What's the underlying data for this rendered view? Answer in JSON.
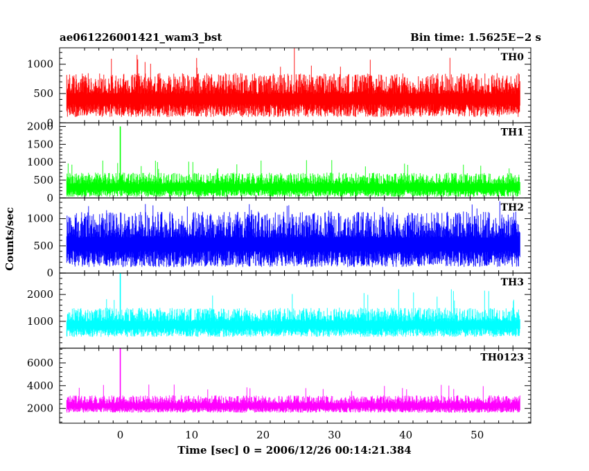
{
  "header": {
    "title": "ae061226001421_wam3_bst",
    "bin_time": "Bin time: 1.5625E−2 s"
  },
  "axes": {
    "ylabel": "Counts/sec",
    "xlabel": "Time [sec] 0 = 2006/12/26 00:14:21.384"
  },
  "chart_data": {
    "type": "line",
    "x_range": [
      -8.5,
      57.5
    ],
    "x_ticks": [
      0,
      10,
      20,
      30,
      40,
      50
    ],
    "x_tick_labels": [
      "0",
      "10",
      "20",
      "30",
      "40",
      "50"
    ],
    "data_x_start": -7.5,
    "data_x_end": 56,
    "grid": false,
    "panels": [
      {
        "name": "TH0",
        "color": "#ff0000",
        "ylim": [
          0,
          1280
        ],
        "yticks": [
          0,
          500,
          1000
        ],
        "ytick_labels": [
          "0",
          "500",
          "1000"
        ],
        "mean": 430,
        "noise": 220,
        "peak_max": 1280,
        "trough_min": 40,
        "spike_x": null,
        "spike_y": null
      },
      {
        "name": "TH1",
        "color": "#00ff00",
        "ylim": [
          0,
          2100
        ],
        "yticks": [
          0,
          500,
          1000,
          1500,
          2000
        ],
        "ytick_labels": [
          "0",
          "500",
          "1000",
          "1500",
          "2000"
        ],
        "mean": 330,
        "noise": 200,
        "peak_max": 1100,
        "trough_min": 20,
        "spike_x": 0,
        "spike_y": 2000
      },
      {
        "name": "TH2",
        "color": "#0000ff",
        "ylim": [
          0,
          1380
        ],
        "yticks": [
          0,
          500,
          1000
        ],
        "ytick_labels": [
          "0",
          "500",
          "1000"
        ],
        "mean": 560,
        "noise": 300,
        "peak_max": 1320,
        "trough_min": 20,
        "spike_x": null,
        "spike_y": null
      },
      {
        "name": "TH3",
        "color": "#00ffff",
        "ylim": [
          0,
          2800
        ],
        "yticks": [
          1000,
          2000
        ],
        "ytick_labels": [
          "1000",
          "2000"
        ],
        "mean": 900,
        "noise": 320,
        "peak_max": 2300,
        "trough_min": 50,
        "spike_x": 0,
        "spike_y": 2800
      },
      {
        "name": "TH0123",
        "color": "#ff00ff",
        "ylim": [
          700,
          7300
        ],
        "yticks": [
          2000,
          4000,
          6000
        ],
        "ytick_labels": [
          "2000",
          "4000",
          "6000"
        ],
        "mean": 2300,
        "noise": 450,
        "peak_max": 4200,
        "trough_min": 1100,
        "spike_x": 0,
        "spike_y": 7300
      }
    ]
  }
}
